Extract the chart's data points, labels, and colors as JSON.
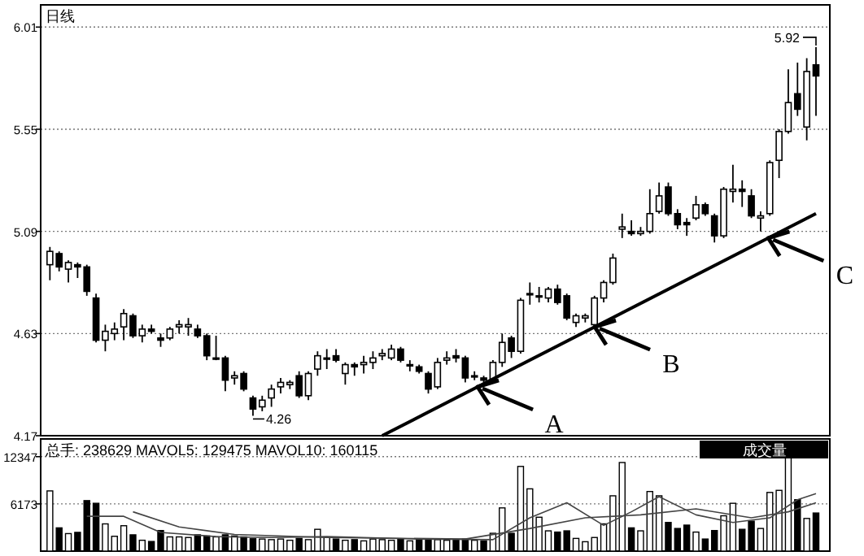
{
  "chart_data": [
    {
      "type": "candlestick",
      "categories": [
        null,
        null,
        null,
        null,
        null,
        null,
        null,
        null,
        null,
        null,
        null,
        null,
        null,
        null,
        null,
        null,
        null,
        null,
        null,
        null,
        null,
        null,
        null,
        null,
        null,
        null,
        null,
        null,
        null,
        null,
        null,
        null,
        null,
        null,
        null,
        null,
        null,
        null,
        null,
        null,
        null,
        null,
        null,
        null,
        null,
        null,
        null,
        null,
        null,
        null,
        null,
        null,
        null,
        null,
        null,
        null,
        null,
        null,
        null,
        null,
        null,
        null,
        null,
        null,
        null,
        null,
        null,
        null,
        null,
        null,
        null,
        null,
        null,
        null,
        null,
        null,
        null,
        null,
        null,
        null,
        null,
        null,
        null,
        null
      ],
      "ohlc": [
        [
          4.94,
          5.02,
          4.87,
          5.0
        ],
        [
          4.99,
          5.0,
          4.91,
          4.93
        ],
        [
          4.92,
          4.96,
          4.86,
          4.95
        ],
        [
          4.94,
          4.95,
          4.88,
          4.93
        ],
        [
          4.93,
          4.94,
          4.8,
          4.82
        ],
        [
          4.79,
          4.81,
          4.59,
          4.6
        ],
        [
          4.6,
          4.67,
          4.55,
          4.64
        ],
        [
          4.63,
          4.68,
          4.6,
          4.65
        ],
        [
          4.66,
          4.74,
          4.6,
          4.72
        ],
        [
          4.71,
          4.72,
          4.61,
          4.62
        ],
        [
          4.62,
          4.67,
          4.59,
          4.65
        ],
        [
          4.65,
          4.67,
          4.63,
          4.64
        ],
        [
          4.61,
          4.63,
          4.57,
          4.6
        ],
        [
          4.61,
          4.66,
          4.6,
          4.65
        ],
        [
          4.66,
          4.69,
          4.63,
          4.67
        ],
        [
          4.66,
          4.7,
          4.62,
          4.67
        ],
        [
          4.65,
          4.67,
          4.61,
          4.62
        ],
        [
          4.62,
          4.63,
          4.51,
          4.53
        ],
        [
          4.52,
          4.62,
          4.51,
          4.52
        ],
        [
          4.52,
          4.53,
          4.37,
          4.42
        ],
        [
          4.43,
          4.46,
          4.4,
          4.44
        ],
        [
          4.45,
          4.46,
          4.37,
          4.38
        ],
        [
          4.34,
          4.35,
          4.26,
          4.29
        ],
        [
          4.3,
          4.35,
          4.28,
          4.33
        ],
        [
          4.34,
          4.4,
          4.3,
          4.38
        ],
        [
          4.39,
          4.43,
          4.36,
          4.41
        ],
        [
          4.4,
          4.42,
          4.38,
          4.41
        ],
        [
          4.44,
          4.46,
          4.34,
          4.35
        ],
        [
          4.35,
          4.46,
          4.33,
          4.45
        ],
        [
          4.47,
          4.55,
          4.44,
          4.53
        ],
        [
          4.52,
          4.56,
          4.47,
          4.52
        ],
        [
          4.53,
          4.56,
          4.5,
          4.51
        ],
        [
          4.45,
          4.5,
          4.4,
          4.49
        ],
        [
          4.49,
          4.5,
          4.44,
          4.48
        ],
        [
          4.49,
          4.53,
          4.45,
          4.5
        ],
        [
          4.5,
          4.55,
          4.47,
          4.52
        ],
        [
          4.53,
          4.56,
          4.51,
          4.54
        ],
        [
          4.52,
          4.58,
          4.51,
          4.56
        ],
        [
          4.56,
          4.57,
          4.5,
          4.51
        ],
        [
          4.49,
          4.51,
          4.46,
          4.49
        ],
        [
          4.48,
          4.49,
          4.45,
          4.46
        ],
        [
          4.45,
          4.46,
          4.36,
          4.38
        ],
        [
          4.39,
          4.52,
          4.38,
          4.5
        ],
        [
          4.51,
          4.55,
          4.49,
          4.52
        ],
        [
          4.53,
          4.56,
          4.5,
          4.52
        ],
        [
          4.52,
          4.53,
          4.41,
          4.43
        ],
        [
          4.44,
          4.46,
          4.42,
          4.44
        ],
        [
          4.43,
          4.44,
          4.41,
          4.42
        ],
        [
          4.42,
          4.51,
          4.41,
          4.5
        ],
        [
          4.5,
          4.63,
          4.48,
          4.59
        ],
        [
          4.61,
          4.62,
          4.52,
          4.55
        ],
        [
          4.55,
          4.79,
          4.54,
          4.78
        ],
        [
          4.81,
          4.86,
          4.76,
          4.81
        ],
        [
          4.8,
          4.84,
          4.77,
          4.8
        ],
        [
          4.79,
          4.84,
          4.77,
          4.83
        ],
        [
          4.83,
          4.85,
          4.76,
          4.77
        ],
        [
          4.8,
          4.81,
          4.69,
          4.7
        ],
        [
          4.68,
          4.72,
          4.66,
          4.71
        ],
        [
          4.7,
          4.72,
          4.68,
          4.71
        ],
        [
          4.67,
          4.8,
          4.66,
          4.79
        ],
        [
          4.79,
          4.87,
          4.77,
          4.86
        ],
        [
          4.86,
          4.99,
          4.85,
          4.97
        ],
        [
          5.1,
          5.17,
          5.06,
          5.11
        ],
        [
          5.09,
          5.14,
          5.07,
          5.08
        ],
        [
          5.08,
          5.11,
          5.07,
          5.09
        ],
        [
          5.09,
          5.28,
          5.08,
          5.17
        ],
        [
          5.18,
          5.31,
          5.17,
          5.25
        ],
        [
          5.29,
          5.31,
          5.16,
          5.17
        ],
        [
          5.17,
          5.19,
          5.1,
          5.12
        ],
        [
          5.13,
          5.15,
          5.07,
          5.12
        ],
        [
          5.15,
          5.25,
          5.14,
          5.21
        ],
        [
          5.21,
          5.22,
          5.16,
          5.17
        ],
        [
          5.16,
          5.17,
          5.04,
          5.07
        ],
        [
          5.07,
          5.29,
          5.06,
          5.28
        ],
        [
          5.27,
          5.39,
          5.22,
          5.28
        ],
        [
          5.28,
          5.32,
          5.2,
          5.27
        ],
        [
          5.25,
          5.28,
          5.15,
          5.16
        ],
        [
          5.15,
          5.18,
          5.09,
          5.16
        ],
        [
          5.17,
          5.41,
          5.16,
          5.4
        ],
        [
          5.41,
          5.55,
          5.33,
          5.54
        ],
        [
          5.54,
          5.82,
          5.53,
          5.67
        ],
        [
          5.71,
          5.85,
          5.61,
          5.64
        ],
        [
          5.56,
          5.87,
          5.5,
          5.81
        ],
        [
          5.84,
          5.92,
          5.61,
          5.79
        ]
      ],
      "series": [
        {
          "type": "line",
          "values": [
            null,
            null,
            null,
            null,
            null,
            null,
            null,
            null,
            null,
            null,
            null,
            null,
            null,
            null,
            null,
            null,
            null,
            null,
            null,
            null,
            null,
            null,
            null,
            null,
            null,
            null,
            null,
            null,
            null,
            null,
            null,
            null,
            null,
            null,
            null,
            null,
            4.17,
            null,
            null,
            null,
            null,
            null,
            null,
            null,
            null,
            null,
            null,
            null,
            null,
            null,
            null,
            null,
            null,
            null,
            null,
            null,
            null,
            null,
            null,
            null,
            null,
            null,
            null,
            null,
            null,
            null,
            null,
            null,
            null,
            null,
            null,
            null,
            null,
            null,
            null,
            null,
            null,
            null,
            null,
            null,
            null,
            null,
            null,
            5.17
          ],
          "color": "#000000"
        }
      ],
      "ylim": [
        4.17,
        6.11
      ],
      "yticks": [
        4.17,
        4.63,
        5.09,
        5.55,
        6.01
      ],
      "grid": "y",
      "tick_labels": "y",
      "annotations": [
        "日线",
        "4.26",
        "5.92",
        "A",
        "B",
        "C"
      ]
    },
    {
      "type": "bar",
      "categories": [
        null,
        null,
        null,
        null,
        null,
        null,
        null,
        null,
        null,
        null,
        null,
        null,
        null,
        null,
        null,
        null,
        null,
        null,
        null,
        null,
        null,
        null,
        null,
        null,
        null,
        null,
        null,
        null,
        null,
        null,
        null,
        null,
        null,
        null,
        null,
        null,
        null,
        null,
        null,
        null,
        null,
        null,
        null,
        null,
        null,
        null,
        null,
        null,
        null,
        null,
        null,
        null,
        null,
        null,
        null,
        null,
        null,
        null,
        null,
        null,
        null,
        null,
        null,
        null,
        null,
        null,
        null,
        null,
        null,
        null,
        null,
        null,
        null,
        null,
        null,
        null,
        null,
        null,
        null,
        null,
        null,
        null,
        null,
        null
      ],
      "series": [
        {
          "type": "bar",
          "values": [
            7870,
            3040,
            2290,
            2450,
            6600,
            6250,
            3560,
            1940,
            3320,
            2130,
            1420,
            1260,
            2690,
            1860,
            1860,
            1780,
            2130,
            1980,
            1860,
            2130,
            1980,
            1860,
            1620,
            1580,
            1500,
            1580,
            1420,
            1660,
            1500,
            2850,
            1780,
            1580,
            1420,
            1500,
            1340,
            1580,
            1500,
            1420,
            1580,
            1340,
            1500,
            1580,
            1500,
            1420,
            1500,
            1580,
            1420,
            1340,
            2330,
            5650,
            2330,
            11070,
            8140,
            4430,
            2650,
            2490,
            2650,
            1660,
            1230,
            1780,
            3560,
            7230,
            11580,
            3040,
            2650,
            7790,
            7230,
            3750,
            2960,
            3400,
            2490,
            1580,
            2690,
            4620,
            6250,
            2850,
            3910,
            2960,
            7670,
            7940,
            12330,
            6720,
            4270,
            4980
          ],
          "colors": [
            "#ffffff",
            "#000000",
            "#ffffff",
            "#000000",
            "#000000",
            "#000000",
            "#ffffff",
            "#ffffff",
            "#ffffff",
            "#000000",
            "#ffffff",
            "#000000",
            "#000000",
            "#ffffff",
            "#ffffff",
            "#ffffff",
            "#000000",
            "#000000",
            "#ffffff",
            "#000000",
            "#ffffff",
            "#000000",
            "#000000",
            "#ffffff",
            "#ffffff",
            "#ffffff",
            "#ffffff",
            "#000000",
            "#ffffff",
            "#ffffff",
            "#ffffff",
            "#000000",
            "#ffffff",
            "#000000",
            "#ffffff",
            "#ffffff",
            "#ffffff",
            "#ffffff",
            "#000000",
            "#ffffff",
            "#000000",
            "#000000",
            "#ffffff",
            "#ffffff",
            "#000000",
            "#000000",
            "#ffffff",
            "#000000",
            "#ffffff",
            "#ffffff",
            "#000000",
            "#ffffff",
            "#ffffff",
            "#ffffff",
            "#ffffff",
            "#000000",
            "#000000",
            "#ffffff",
            "#ffffff",
            "#ffffff",
            "#ffffff",
            "#ffffff",
            "#ffffff",
            "#000000",
            "#ffffff",
            "#ffffff",
            "#ffffff",
            "#000000",
            "#000000",
            "#000000",
            "#ffffff",
            "#000000",
            "#000000",
            "#ffffff",
            "#ffffff",
            "#000000",
            "#000000",
            "#ffffff",
            "#ffffff",
            "#ffffff",
            "#ffffff",
            "#000000",
            "#ffffff",
            "#000000"
          ]
        },
        {
          "type": "line",
          "values": [
            null,
            null,
            null,
            null,
            4550,
            null,
            null,
            null,
            4550,
            null,
            null,
            null,
            2450,
            null,
            null,
            null,
            null,
            null,
            1900,
            null,
            null,
            null,
            null,
            null,
            1780,
            null,
            null,
            null,
            null,
            null,
            1900,
            null,
            null,
            null,
            null,
            null,
            null,
            null,
            null,
            null,
            1580,
            null,
            null,
            null,
            null,
            null,
            null,
            null,
            1500,
            null,
            null,
            null,
            4350,
            null,
            null,
            null,
            6320,
            null,
            null,
            null,
            3360,
            null,
            null,
            5140,
            null,
            null,
            7110,
            null,
            null,
            null,
            4740,
            null,
            null,
            null,
            3750,
            null,
            null,
            null,
            4350,
            null,
            null,
            6720,
            null,
            7510
          ],
          "color": "#444444"
        },
        {
          "type": "line",
          "values": [
            null,
            null,
            null,
            null,
            null,
            null,
            null,
            null,
            null,
            5140,
            null,
            null,
            null,
            null,
            3160,
            null,
            null,
            null,
            null,
            null,
            2170,
            null,
            null,
            null,
            null,
            null,
            null,
            null,
            null,
            null,
            1780,
            null,
            null,
            null,
            null,
            null,
            null,
            null,
            null,
            null,
            null,
            null,
            null,
            null,
            null,
            1580,
            null,
            null,
            null,
            null,
            null,
            null,
            2960,
            null,
            null,
            null,
            null,
            null,
            4350,
            null,
            null,
            null,
            null,
            null,
            4740,
            null,
            null,
            null,
            null,
            null,
            5530,
            null,
            null,
            null,
            null,
            null,
            4350,
            null,
            null,
            null,
            5140,
            null,
            null,
            6320
          ],
          "color": "#444444"
        }
      ],
      "ylim": [
        0,
        14660
      ],
      "yticks": [
        12347,
        6173
      ],
      "grid": "y",
      "tick_labels": "y",
      "annotations": [
        "总手: 238629 MAVOL5: 129475 MAVOL10: 160115",
        "成交量"
      ]
    }
  ]
}
